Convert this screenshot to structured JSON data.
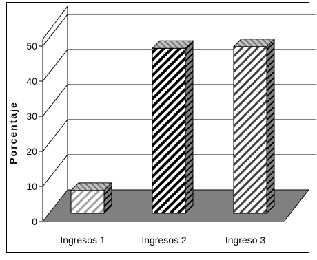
{
  "chart_data": {
    "type": "bar",
    "categories": [
      "Ingresos 1",
      "Ingresos 2",
      "Ingreso 3"
    ],
    "values": [
      6.5,
      47,
      47.5
    ],
    "ylabel": "Porcentaje",
    "ylim": [
      0,
      50
    ],
    "yticks": [
      "0",
      "10",
      "20",
      "30",
      "40",
      "50"
    ],
    "grid": true,
    "three_d": true,
    "floor_color": "#808080",
    "front_face_color": "#ffffff",
    "stripe_dark": "#000000",
    "stripe_light": "#808080"
  }
}
